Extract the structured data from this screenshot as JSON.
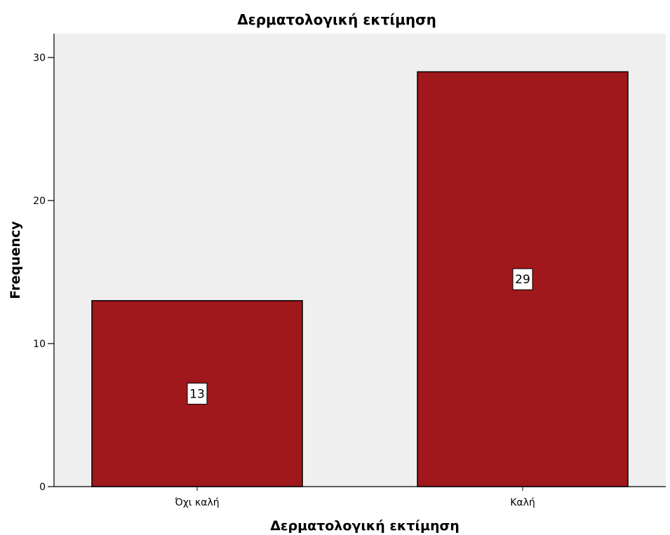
{
  "chart_data": {
    "type": "bar",
    "title": "Δερματολογική εκτίμηση",
    "xlabel": "Δερματολογική εκτίμηση",
    "ylabel": "Frequency",
    "categories": [
      "Όχι καλή",
      "Καλή"
    ],
    "values": [
      13,
      29
    ],
    "data_labels": [
      "13",
      "29"
    ],
    "ylim": [
      0,
      30
    ],
    "yticks": [
      0,
      10,
      20,
      30
    ],
    "ytick_labels": [
      "0",
      "10",
      "20",
      "30"
    ],
    "grid": false,
    "legend": "none",
    "colors": {
      "bar": "#a0171c",
      "plot_background": "#efeff0",
      "axis": "#000000"
    }
  }
}
